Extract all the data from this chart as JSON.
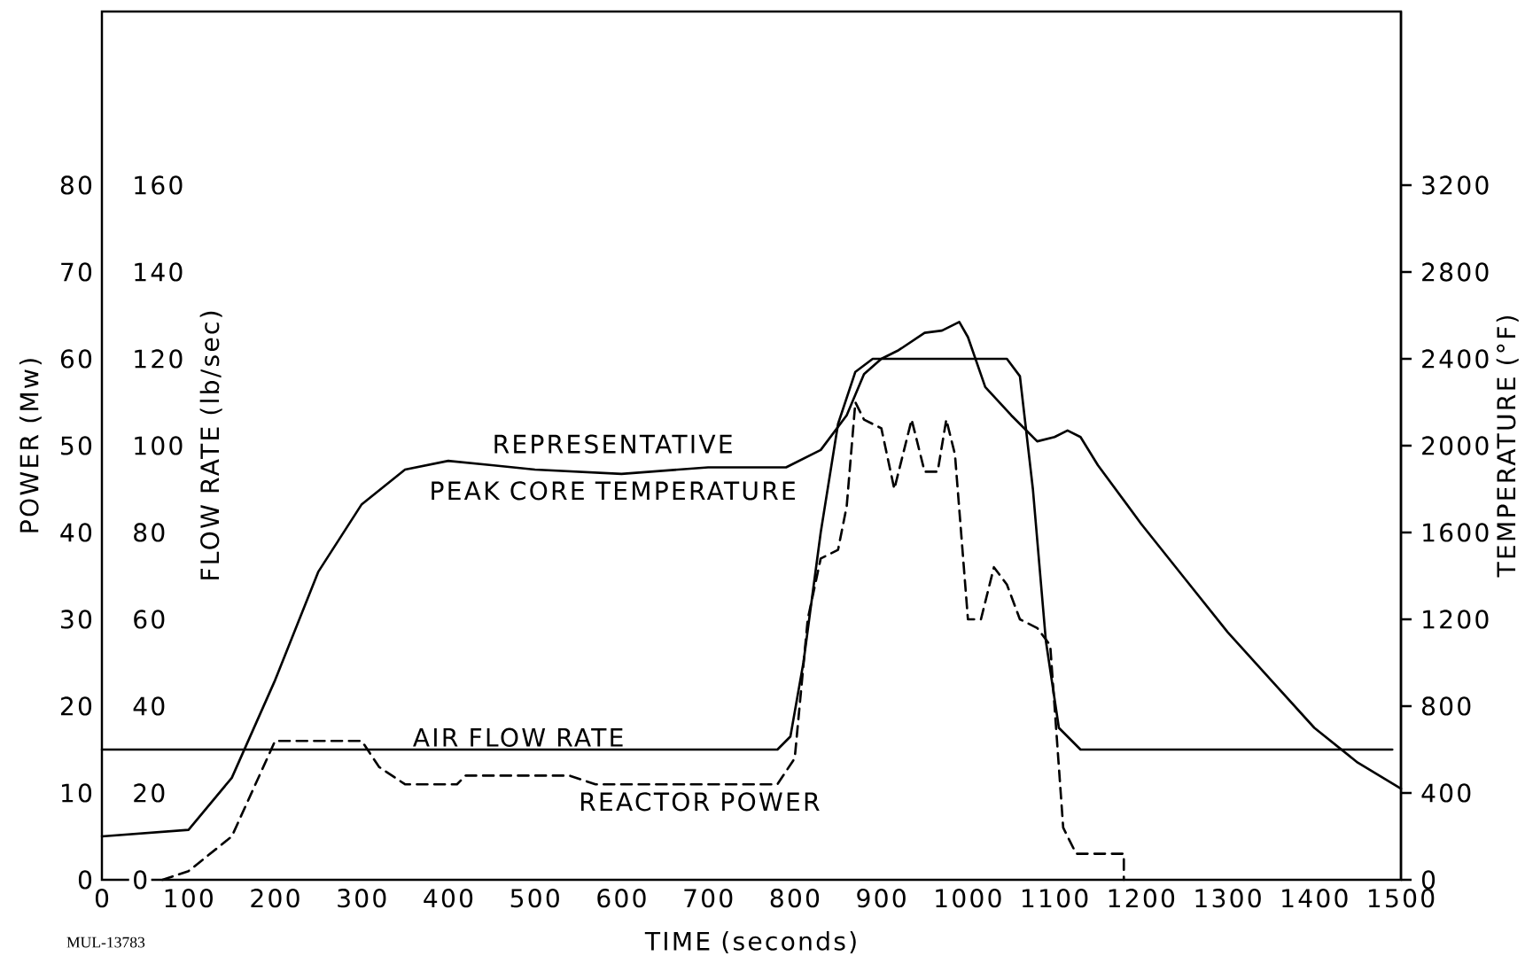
{
  "chart_data": {
    "type": "line",
    "xlabel": "TIME (seconds)",
    "ylabel": "POWER (Mw)",
    "y2label": "FLOW RATE (lb/sec)",
    "y3label": "TEMPERATURE (°F)",
    "xlim": [
      0,
      1500
    ],
    "xticks": [
      0,
      100,
      200,
      300,
      400,
      500,
      600,
      700,
      800,
      900,
      1000,
      1100,
      1200,
      1300,
      1400,
      1500
    ],
    "ylim": [
      0,
      100
    ],
    "yticks": [
      0,
      10,
      20,
      30,
      40,
      50,
      60,
      70,
      80
    ],
    "y2lim": [
      0,
      200
    ],
    "y2ticks": [
      0,
      20,
      40,
      60,
      80,
      100,
      120,
      140,
      160
    ],
    "y3lim": [
      0,
      4000
    ],
    "y3ticks": [
      0,
      400,
      800,
      1200,
      1600,
      2000,
      2400,
      2800,
      3200
    ],
    "annotations": [
      "MUL-13783"
    ],
    "series": [
      {
        "name": "REACTOR POWER",
        "color": "#000000",
        "line_style": "dashed",
        "axis": "y",
        "x": [
          70,
          100,
          150,
          200,
          250,
          300,
          320,
          350,
          410,
          420,
          540,
          570,
          780,
          800,
          815,
          830,
          850,
          860,
          870,
          880,
          900,
          915,
          935,
          950,
          965,
          975,
          985,
          1000,
          1015,
          1030,
          1045,
          1060,
          1080,
          1095,
          1110,
          1125,
          1150,
          1180,
          1180
        ],
        "values": [
          0,
          1,
          5,
          16,
          16,
          16,
          13,
          11,
          11,
          12,
          12,
          11,
          11,
          14,
          30,
          37,
          38,
          43,
          55,
          53,
          52,
          45,
          53,
          47,
          47,
          53,
          49,
          30,
          30,
          36,
          34,
          30,
          29,
          27,
          6,
          3,
          3,
          3,
          0
        ]
      },
      {
        "name": "AIR FLOW RATE",
        "color": "#000000",
        "line_style": "solid",
        "axis": "y2",
        "x": [
          0,
          780,
          795,
          810,
          830,
          850,
          870,
          890,
          1045,
          1060,
          1075,
          1090,
          1105,
          1130,
          1490
        ],
        "values": [
          30,
          30,
          33,
          50,
          80,
          105,
          117,
          120,
          120,
          116,
          90,
          55,
          35,
          30,
          30
        ]
      },
      {
        "name": "REPRESENTATIVE PEAK CORE TEMPERATURE",
        "color": "#000000",
        "line_style": "solid",
        "axis": "y3",
        "x": [
          0,
          100,
          150,
          200,
          250,
          300,
          350,
          400,
          450,
          500,
          600,
          700,
          790,
          830,
          860,
          880,
          900,
          920,
          950,
          970,
          990,
          1000,
          1020,
          1050,
          1080,
          1100,
          1115,
          1130,
          1150,
          1200,
          1250,
          1300,
          1350,
          1400,
          1450,
          1500
        ],
        "values": [
          200,
          230,
          470,
          920,
          1420,
          1730,
          1890,
          1930,
          1910,
          1890,
          1870,
          1900,
          1900,
          1980,
          2140,
          2330,
          2400,
          2440,
          2520,
          2530,
          2570,
          2500,
          2270,
          2140,
          2020,
          2040,
          2070,
          2040,
          1910,
          1640,
          1390,
          1140,
          920,
          700,
          540,
          420
        ]
      }
    ]
  }
}
